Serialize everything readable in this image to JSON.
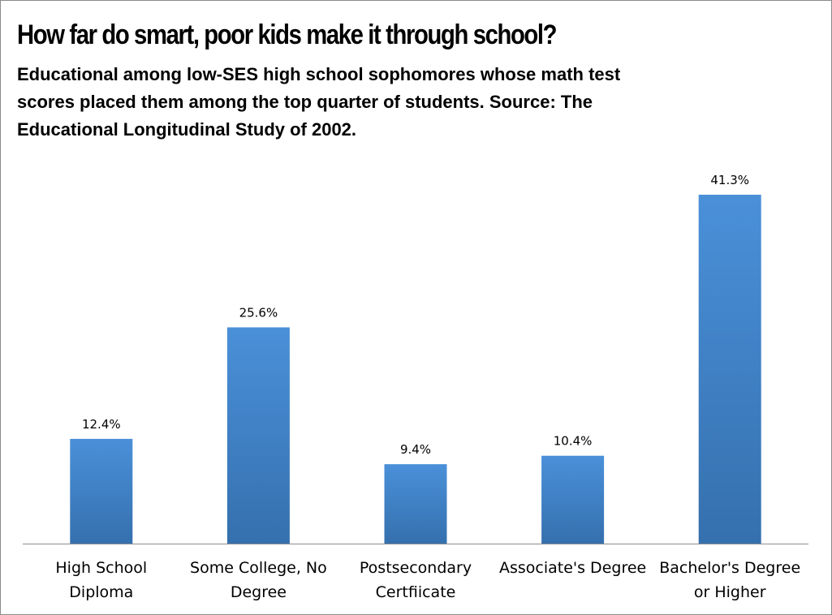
{
  "chart_data": {
    "type": "bar",
    "title": "How far do smart, poor kids make it through school?",
    "subtitle": "Educational among low-SES high school sophomores whose math test scores placed them among the top quarter of students. Source: The Educational Longitudinal Study of 2002.",
    "categories": [
      [
        "High School",
        "Diploma"
      ],
      [
        "Some College, No",
        "Degree"
      ],
      [
        "Postsecondary",
        "Certfiicate"
      ],
      [
        "Associate's Degree"
      ],
      [
        "Bachelor's Degree",
        "or Higher"
      ]
    ],
    "values": [
      12.4,
      25.6,
      9.4,
      10.4,
      41.3
    ],
    "data_labels": [
      "12.4%",
      "25.6%",
      "9.4%",
      "10.4%",
      "41.3%"
    ],
    "ylim": [
      0,
      41.3
    ],
    "grid": false,
    "legend": "none",
    "colors": {
      "bar_top": "#4a90d9",
      "bar_bottom": "#3570ae",
      "axis": "#8c8c8c"
    }
  }
}
